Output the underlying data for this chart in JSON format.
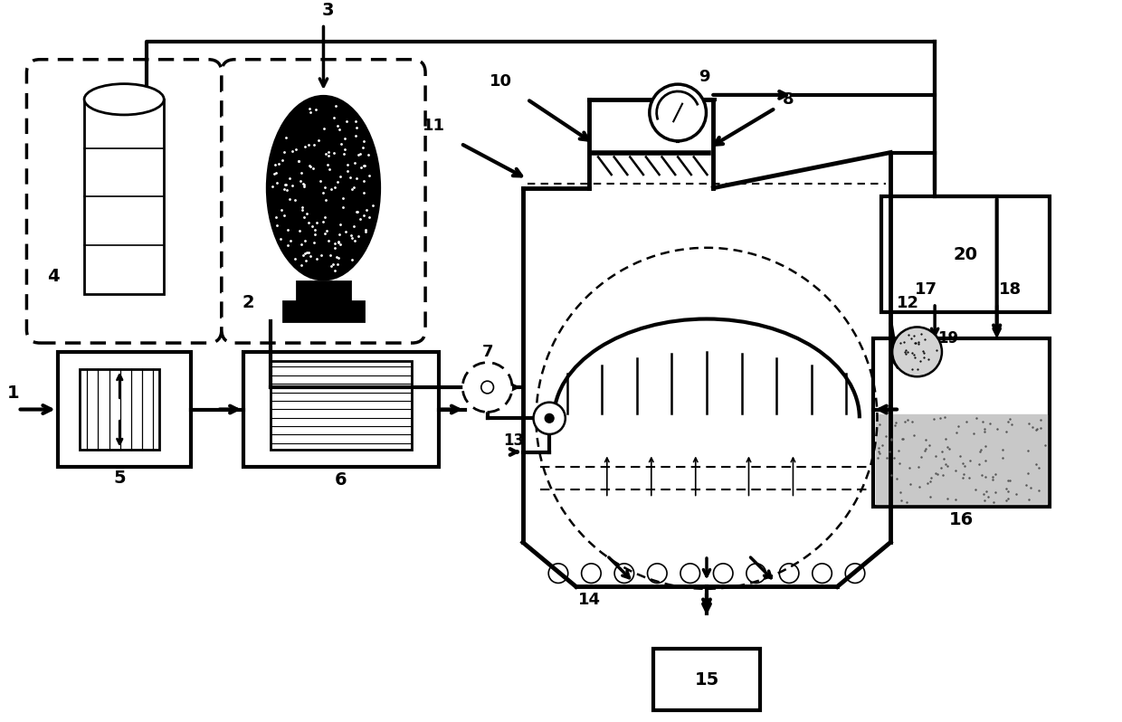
{
  "bg_color": "#ffffff",
  "line_color": "#000000",
  "figsize": [
    12.4,
    7.98
  ],
  "dpi": 100
}
